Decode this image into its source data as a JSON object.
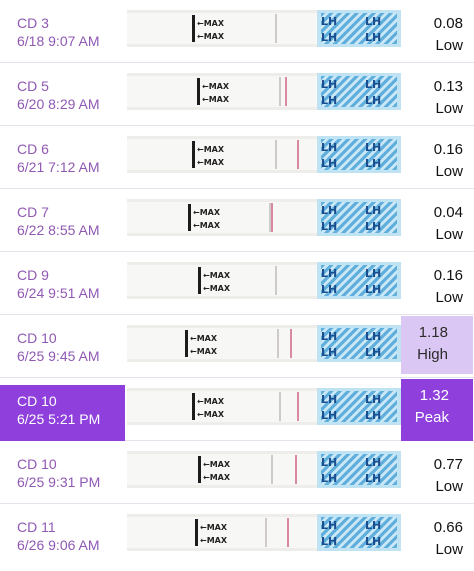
{
  "colors": {
    "label_text": "#9059b3",
    "selected_bg": "#8e3fdc",
    "high_bg": "#dac7f3",
    "peak_bg": "#8e3fdc",
    "strip_window": "#bfe3f3",
    "test_line": "#d98aa0"
  },
  "strip": {
    "max_label": "←MAX",
    "brand_text": "LH"
  },
  "tests": [
    {
      "cd": "CD 3",
      "time": "6/18 9:07 AM",
      "value": "0.08",
      "level": "Low",
      "state": "normal"
    },
    {
      "cd": "CD 5",
      "time": "6/20 8:29 AM",
      "value": "0.13",
      "level": "Low",
      "state": "normal"
    },
    {
      "cd": "CD 6",
      "time": "6/21 7:12 AM",
      "value": "0.16",
      "level": "Low",
      "state": "normal"
    },
    {
      "cd": "CD 7",
      "time": "6/22 8:55 AM",
      "value": "0.04",
      "level": "Low",
      "state": "normal"
    },
    {
      "cd": "CD 9",
      "time": "6/24 9:51 AM",
      "value": "0.16",
      "level": "Low",
      "state": "normal"
    },
    {
      "cd": "CD 10",
      "time": "6/25 9:45 AM",
      "value": "1.18",
      "level": "High",
      "state": "high"
    },
    {
      "cd": "CD 10",
      "time": "6/25 5:21 PM",
      "value": "1.32",
      "level": "Peak",
      "state": "peak",
      "selected": true
    },
    {
      "cd": "CD 10",
      "time": "6/25 9:31 PM",
      "value": "0.77",
      "level": "Low",
      "state": "normal"
    },
    {
      "cd": "CD 11",
      "time": "6/26 9:06 AM",
      "value": "0.66",
      "level": "Low",
      "state": "normal"
    }
  ]
}
